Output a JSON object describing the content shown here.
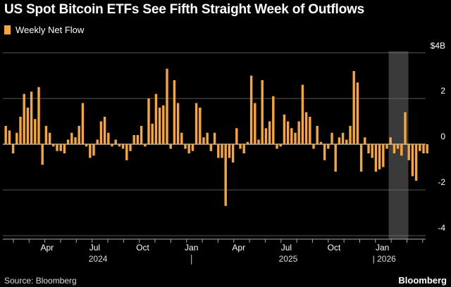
{
  "title": "US Spot Bitcoin ETFs See Fifth Straight Week of Outflows",
  "source": "Source: Bloomberg",
  "brand": "Bloomberg",
  "colors": {
    "bar": "#f7a638",
    "highlight": "#3a3a3a",
    "grid": "#777777",
    "zero": "#ffffff"
  },
  "chart_data": {
    "type": "bar",
    "legend": [
      "Weekly Net Flow"
    ],
    "ylim": [
      -4,
      4
    ],
    "y_ticks": [
      4,
      2,
      0,
      -2,
      -4
    ],
    "y_tick_labels": [
      "$4B",
      "2",
      "0",
      "-2",
      "-4"
    ],
    "month_labels": [
      {
        "label": "Apr",
        "week": 11.6
      },
      {
        "label": "Jul",
        "week": 24.6
      },
      {
        "label": "Oct",
        "week": 37.7
      },
      {
        "label": "Jan",
        "week": 51.0
      },
      {
        "label": "Apr",
        "week": 63.9
      },
      {
        "label": "Jul",
        "week": 76.9
      },
      {
        "label": "Oct",
        "week": 89.9
      },
      {
        "label": "Jan",
        "week": 103.1
      }
    ],
    "year_labels": [
      {
        "label": "2024",
        "week": 25.5
      },
      {
        "label": "2025",
        "week": 77.4
      },
      {
        "label": "| 2026",
        "week": 103.6
      }
    ],
    "year_separators": [
      51.0
    ],
    "shaded_range": [
      105.0,
      110.0
    ],
    "series": [
      {
        "name": "Weekly Net Flow",
        "values": [
          0.8,
          0.6,
          -0.4,
          0.5,
          1.2,
          2.2,
          1.6,
          2.3,
          1.1,
          2.5,
          -0.9,
          0.8,
          0.5,
          -0.1,
          -0.3,
          -0.3,
          -0.4,
          0.2,
          0.5,
          0.3,
          0.8,
          1.8,
          -0.1,
          -0.6,
          -0.5,
          0.2,
          1.0,
          1.2,
          0.5,
          -0.1,
          0.2,
          -0.1,
          -0.2,
          -0.7,
          -0.3,
          0.4,
          0.4,
          0.8,
          -0.1,
          2.0,
          0.9,
          2.2,
          1.6,
          1.7,
          3.3,
          -0.2,
          2.8,
          1.8,
          0.5,
          -0.2,
          -0.4,
          -0.3,
          1.8,
          1.6,
          0.3,
          0.5,
          -0.3,
          0.5,
          -0.6,
          -0.6,
          -2.7,
          -0.6,
          -0.8,
          0.7,
          -0.2,
          -0.4,
          0.1,
          3.0,
          1.8,
          0.2,
          2.8,
          0.7,
          1.0,
          2.1,
          -0.2,
          -0.1,
          1.3,
          1.0,
          0.7,
          0.5,
          1.0,
          2.6,
          1.4,
          1.2,
          -0.2,
          0.8,
          0.1,
          -0.7,
          -0.2,
          0.5,
          -1.2,
          0.3,
          0.5,
          0.2,
          0.8,
          3.2,
          2.7,
          -1.2,
          0.3,
          -0.4,
          -0.6,
          -1.2,
          -1.1,
          -1.0,
          -0.2,
          0.3,
          -0.4,
          -0.2,
          -0.5,
          1.4,
          -0.7,
          -1.4,
          -1.6,
          -0.3,
          -0.4,
          -0.4
        ]
      }
    ]
  }
}
